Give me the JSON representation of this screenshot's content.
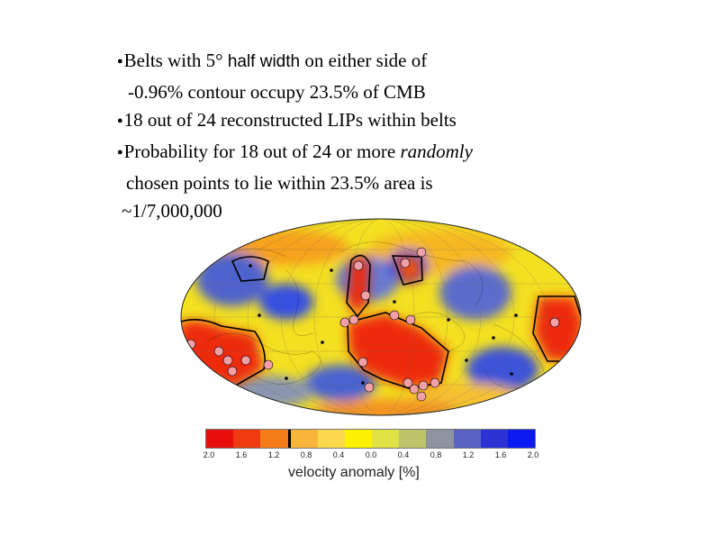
{
  "bullets": [
    {
      "prefix": "Belts with 5° ",
      "sans": "half width",
      "suffix": " on either side of"
    },
    {
      "text": "-0.96% contour occupy 23.5% of CMB"
    },
    {
      "text": "18 out of 24 reconstructed LIPs within belts"
    },
    {
      "prefix": "Probability for 18 out of 24 or more ",
      "italic": "randomly"
    },
    {
      "text": "chosen points to lie within 23.5% area is"
    },
    {
      "text": "~1/7,000,000"
    }
  ],
  "colorbar": {
    "title": "velocity anomaly [%]",
    "ticks": [
      "2.0",
      "1.6",
      "1.2",
      "0.8",
      "0.4",
      "0.0",
      "0.4",
      "0.8",
      "1.2",
      "1.6",
      "2.0"
    ],
    "colors": [
      "#e8100c",
      "#f03a10",
      "#f57a18",
      "#f9b43a",
      "#fbd84c",
      "#fff200",
      "#e0e246",
      "#bfc46a",
      "#8e93a0",
      "#5a62c4",
      "#2a34d4",
      "#0a1af0"
    ]
  }
}
